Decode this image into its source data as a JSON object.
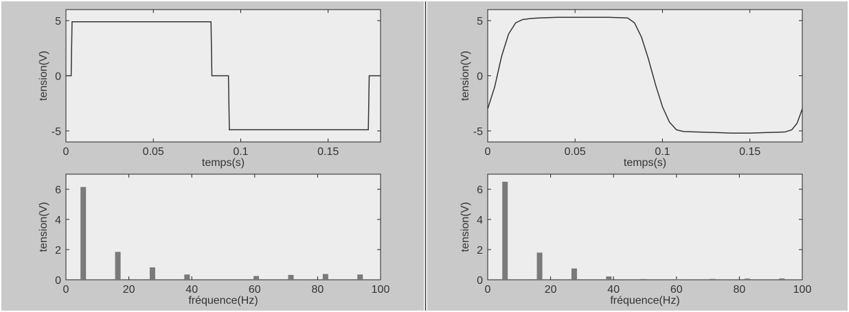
{
  "colors": {
    "panel": "#c9c9c9",
    "axes": "#ededed",
    "trace": "#333333",
    "bar": "#7a7a7a"
  },
  "chart_data": [
    {
      "id": "left-time",
      "type": "line",
      "xlabel": "temps(s)",
      "ylabel": "tension(V)",
      "xlim": [
        0,
        0.18
      ],
      "ylim": [
        -6,
        6
      ],
      "xticks": [
        0,
        0.05,
        0.1,
        0.15
      ],
      "xtick_labels": [
        "0",
        "0.05",
        "0.1",
        "0.15"
      ],
      "yticks": [
        -5,
        0,
        5
      ],
      "ytick_labels": [
        "-5",
        "0",
        "5"
      ],
      "series": [
        {
          "x": [
            0,
            0.003,
            0.0035,
            0.083,
            0.0835,
            0.093,
            0.0935,
            0.173,
            0.1735,
            0.18
          ],
          "y": [
            0,
            0,
            4.9,
            4.9,
            0,
            0,
            -4.9,
            -4.9,
            0,
            0
          ]
        }
      ]
    },
    {
      "id": "right-time",
      "type": "line",
      "xlabel": "temps(s)",
      "ylabel": "tension(V)",
      "xlim": [
        0,
        0.18
      ],
      "ylim": [
        -6,
        6
      ],
      "xticks": [
        0,
        0.05,
        0.1,
        0.15
      ],
      "xtick_labels": [
        "0",
        "0.05",
        "0.1",
        "0.15"
      ],
      "yticks": [
        -5,
        0,
        5
      ],
      "ytick_labels": [
        "-5",
        "0",
        "5"
      ],
      "series": [
        {
          "x": [
            0,
            0.004,
            0.008,
            0.012,
            0.016,
            0.02,
            0.025,
            0.03,
            0.04,
            0.05,
            0.06,
            0.07,
            0.08,
            0.084,
            0.088,
            0.092,
            0.096,
            0.1,
            0.104,
            0.108,
            0.112,
            0.12,
            0.13,
            0.14,
            0.15,
            0.16,
            0.17,
            0.174,
            0.177,
            0.18
          ],
          "y": [
            -3,
            -1,
            1.8,
            3.8,
            4.8,
            5.1,
            5.2,
            5.25,
            5.3,
            5.3,
            5.3,
            5.3,
            5.25,
            4.8,
            3.5,
            1.5,
            -0.8,
            -2.8,
            -4.2,
            -4.9,
            -5.05,
            -5.1,
            -5.15,
            -5.2,
            -5.2,
            -5.15,
            -5.1,
            -4.9,
            -4.3,
            -3
          ]
        }
      ]
    },
    {
      "id": "left-freq",
      "type": "bar",
      "xlabel": "fréquence(Hz)",
      "ylabel": "tension(V)",
      "xlim": [
        0,
        100
      ],
      "ylim": [
        0,
        7
      ],
      "xticks": [
        0,
        20,
        40,
        60,
        80,
        100
      ],
      "xtick_labels": [
        "0",
        "20",
        "40",
        "60",
        "80",
        "100"
      ],
      "yticks": [
        0,
        2,
        4,
        6
      ],
      "ytick_labels": [
        "0",
        "2",
        "4",
        "6"
      ],
      "bars": {
        "x": [
          5.5,
          16.5,
          27.5,
          38.5,
          60.5,
          71.5,
          82.5,
          93.5
        ],
        "values": [
          6.15,
          1.85,
          0.82,
          0.35,
          0.25,
          0.32,
          0.38,
          0.35
        ]
      }
    },
    {
      "id": "right-freq",
      "type": "bar",
      "xlabel": "fréquence(Hz)",
      "ylabel": "tension(V)",
      "xlim": [
        0,
        100
      ],
      "ylim": [
        0,
        7
      ],
      "xticks": [
        0,
        20,
        40,
        60,
        80,
        100
      ],
      "xtick_labels": [
        "0",
        "20",
        "40",
        "60",
        "80",
        "100"
      ],
      "yticks": [
        0,
        2,
        4,
        6
      ],
      "ytick_labels": [
        "0",
        "2",
        "4",
        "6"
      ],
      "bars": {
        "x": [
          5.5,
          16.5,
          27.5,
          38.5,
          49.5,
          60.5,
          71.5,
          82.5,
          93.5
        ],
        "values": [
          6.5,
          1.8,
          0.75,
          0.22,
          0.05,
          0.04,
          0.06,
          0.08,
          0.09
        ]
      }
    }
  ]
}
